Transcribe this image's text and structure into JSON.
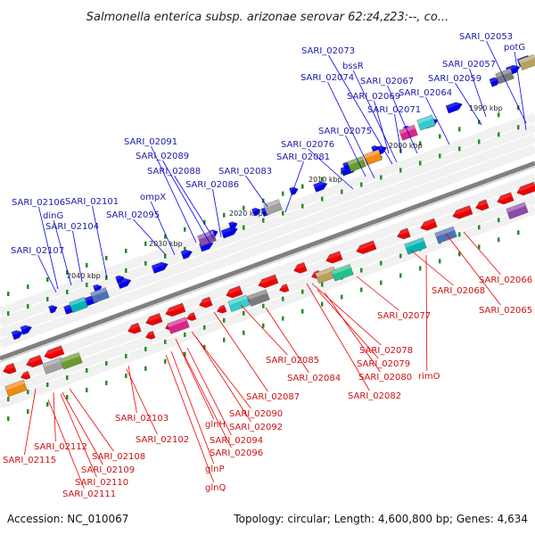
{
  "title": "Salmonella enterica subsp. arizonae serovar 62:z4,z23:--, co...",
  "footer": {
    "accession": "Accession: NC_010067",
    "summary": "Topology: circular; Length: 4,600,800 bp; Genes: 4,634"
  },
  "ticks": [
    "1990 kbp",
    "2000 kbp",
    "2010 kbp",
    "2020 kbp",
    "2030 kbp",
    "2040 kbp"
  ],
  "top_labels": [
    "SARI_02053",
    "potG",
    "SARI_02057",
    "SARI_02059",
    "SARI_02073",
    "bssR",
    "SARI_02074",
    "SARI_02067",
    "SARI_02069",
    "SARI_02064",
    "SARI_02071",
    "SARI_02075",
    "SARI_02076",
    "SARI_02081",
    "SARI_02091",
    "SARI_02089",
    "SARI_02088",
    "SARI_02083",
    "SARI_02086",
    "ompX",
    "SARI_02095",
    "SARI_02106",
    "SARI_02101",
    "dinG",
    "SARI_02104",
    "SARI_02107"
  ],
  "bottom_labels": [
    "rimO",
    "SARI_02066",
    "SARI_02068",
    "SARI_02065",
    "SARI_02077",
    "SARI_02078",
    "SARI_02079",
    "SARI_02080",
    "SARI_02085",
    "SARI_02084",
    "SARI_02082",
    "SARI_02087",
    "SARI_02090",
    "SARI_02092",
    "glnH",
    "SARI_02094",
    "SARI_02096",
    "glnP",
    "glnQ",
    "SARI_02103",
    "SARI_02102",
    "SARI_02112",
    "SARI_02108",
    "SARI_02115",
    "SARI_02109",
    "SARI_02110",
    "SARI_02111"
  ],
  "colors": {
    "forward": "#0000ee",
    "reverse": "#ee0000",
    "backbone": "#808080",
    "tick_dash": "#2a8a2a",
    "top_label": "#1a1aa8",
    "bottom_label": "#cc1111"
  }
}
